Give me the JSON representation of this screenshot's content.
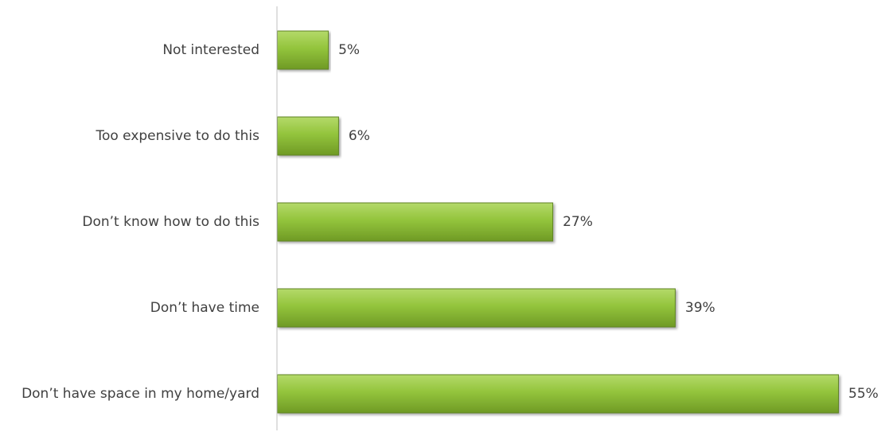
{
  "chart_data": {
    "type": "bar",
    "orientation": "horizontal",
    "categories": [
      "Not interested",
      "Too expensive to do this",
      "Don’t know how to do this",
      "Don’t have time",
      "Don’t have space in my home/yard"
    ],
    "values": [
      5,
      6,
      27,
      39,
      55
    ],
    "value_labels": [
      "5%",
      "6%",
      "27%",
      "39%",
      "55%"
    ],
    "unit": "%",
    "xlim": [
      0,
      55
    ],
    "title": "",
    "xlabel": "",
    "ylabel": "",
    "grid": false,
    "legend": "none",
    "colors": {
      "bar_top": "#b4d96a",
      "bar_mid": "#93c43c",
      "bar_bottom": "#6f9a25",
      "bar_edge": "#5e8420",
      "axis": "#bfbfbf",
      "text": "#404040"
    }
  }
}
